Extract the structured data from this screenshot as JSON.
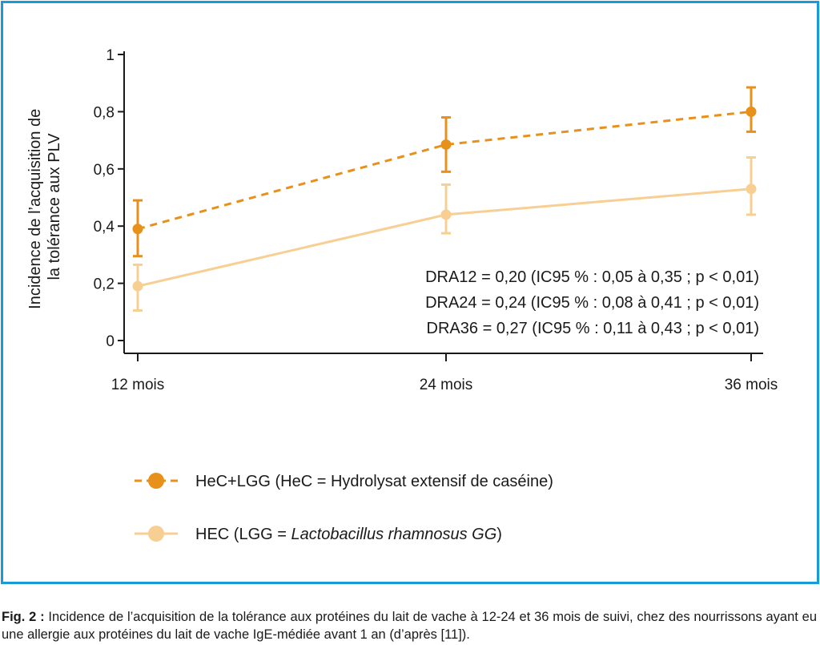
{
  "colors": {
    "frame": "#1a9ad6",
    "hec_lgg": "#e8901c",
    "hec": "#f8cf93",
    "axis": "#1a1a1a"
  },
  "chart_data": {
    "type": "line",
    "categories": [
      "12 mois",
      "24 mois",
      "36 mois"
    ],
    "ylabel": [
      "Incidence de l’acquisition de",
      "la tolérance aux PLV"
    ],
    "ylim": [
      0,
      1
    ],
    "yticks": [
      "0",
      "0,2",
      "0,4",
      "0,6",
      "0,8",
      "1"
    ],
    "ytick_values": [
      0,
      0.2,
      0.4,
      0.6,
      0.8,
      1
    ],
    "grid": false,
    "series": [
      {
        "legend_main": "HeC+LGG (HeC = Hydrolysat extensif de caséine)",
        "color": "#e8901c",
        "dashed": true,
        "values": [
          0.39,
          0.685,
          0.8
        ],
        "error_low": [
          0.295,
          0.59,
          0.73
        ],
        "error_high": [
          0.49,
          0.78,
          0.885
        ]
      },
      {
        "legend_main": "HEC (LGG = ",
        "legend_italic": "Lactobacillus rhamnosus GG",
        "legend_end": ")",
        "color": "#f8cf93",
        "dashed": false,
        "values": [
          0.19,
          0.44,
          0.53
        ],
        "error_low": [
          0.105,
          0.375,
          0.44
        ],
        "error_high": [
          0.265,
          0.545,
          0.64
        ]
      }
    ],
    "annotations": [
      "DRA12 = 0,20 (IC95 % : 0,05 à 0,35 ; p < 0,01)",
      "DRA24 = 0,24 (IC95 % : 0,08 à 0,41 ; p < 0,01)",
      "DRA36 = 0,27 (IC95 % : 0,11 à 0,43 ; p < 0,01)"
    ]
  },
  "caption": {
    "label": "Fig. 2 :",
    "text": "Incidence de l’acquisition de la tolérance aux protéines du lait de vache à 12-24 et 36 mois de suivi, chez des nourrissons ayant eu une allergie aux protéines du lait de vache IgE-médiée avant 1 an (d’après [11])."
  }
}
